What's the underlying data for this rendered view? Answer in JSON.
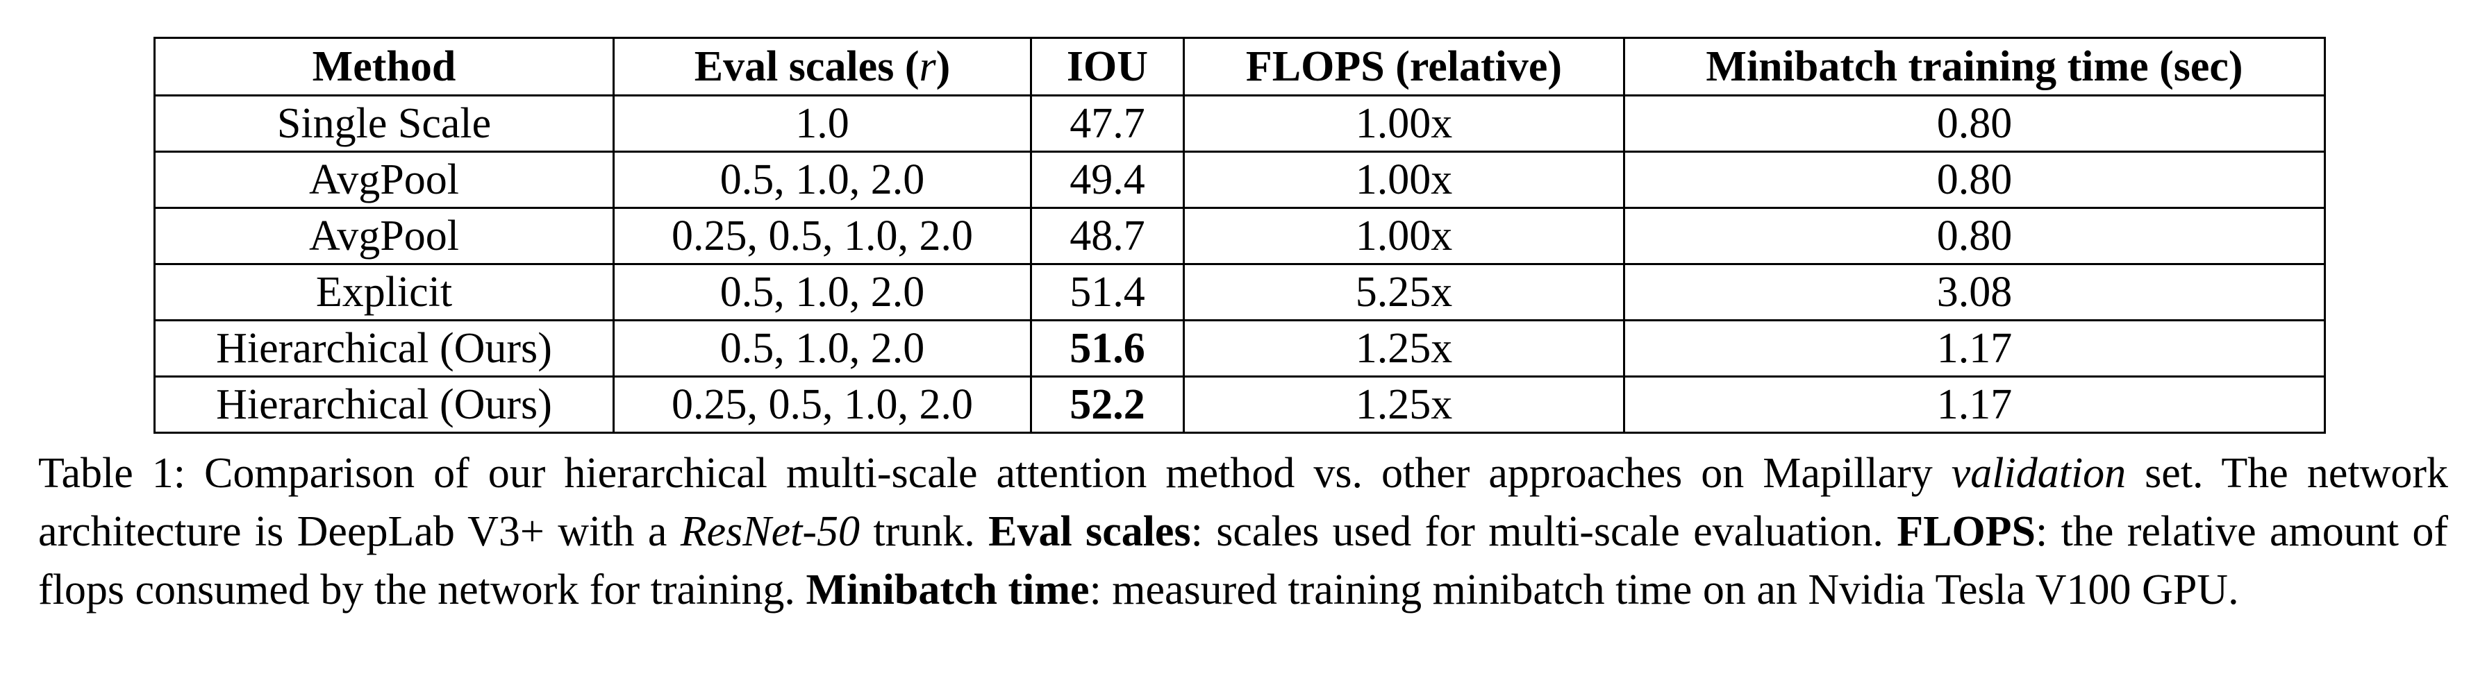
{
  "table": {
    "headers": {
      "method": "Method",
      "eval_scales_prefix": "Eval scales (",
      "eval_scales_symbol": "r",
      "eval_scales_suffix": ")",
      "iou": "IOU",
      "flops": "FLOPS (relative)",
      "time": "Minibatch training time (sec)"
    },
    "rows": [
      {
        "method": "Single Scale",
        "scales": "1.0",
        "iou": "47.7",
        "flops": "1.00x",
        "time": "0.80"
      },
      {
        "method": "AvgPool",
        "scales": "0.5, 1.0, 2.0",
        "iou": "49.4",
        "flops": "1.00x",
        "time": "0.80"
      },
      {
        "method": "AvgPool",
        "scales": "0.25, 0.5, 1.0, 2.0",
        "iou": "48.7",
        "flops": "1.00x",
        "time": "0.80"
      },
      {
        "method": "Explicit",
        "scales": "0.5, 1.0, 2.0",
        "iou": "51.4",
        "flops": "5.25x",
        "time": "3.08"
      },
      {
        "method": "Hierarchical (Ours)",
        "scales": "0.5, 1.0, 2.0",
        "iou": "51.6",
        "flops": "1.25x",
        "time": "1.17"
      },
      {
        "method": "Hierarchical (Ours)",
        "scales": "0.25, 0.5, 1.0, 2.0",
        "iou": "52.2",
        "flops": "1.25x",
        "time": "1.17"
      }
    ]
  },
  "caption": {
    "s1": "Table 1: Comparison of our hierarchical multi-scale attention method vs. other approaches on Mapillary ",
    "s1_italic": "validation",
    "s2": " set. The network architecture is DeepLab V3+ with a ",
    "s2_italic": "ResNet-50",
    "s3": " trunk. ",
    "s3_bold": "Eval scales",
    "s4": ": scales used for multi-scale evaluation. ",
    "s4_bold": "FLOPS",
    "s5": ": the relative amount of flops consumed by the network for training. ",
    "s5_bold": "Minibatch time",
    "s6": ": measured training minibatch time on an Nvidia Tesla V100 GPU."
  }
}
